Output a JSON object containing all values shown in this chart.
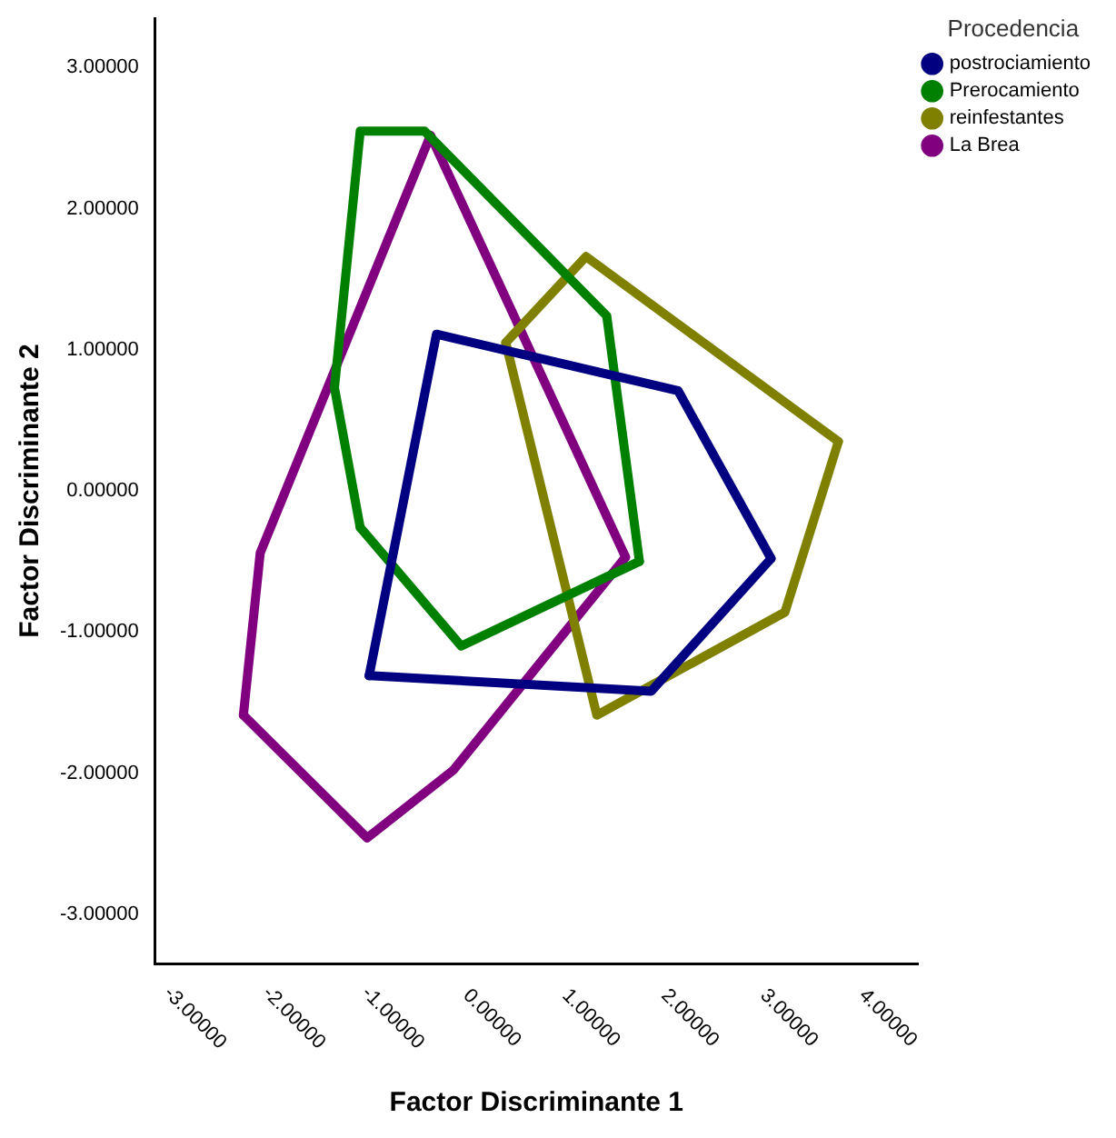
{
  "chart_data": {
    "type": "line",
    "xlabel": "Factor Discriminante 1",
    "ylabel": "Factor Discriminante 2",
    "legend_title": "Procedencia",
    "legend": "top right",
    "grid": false,
    "marker": "none",
    "line_style": "solid",
    "xlim": [
      -3.4,
      4.3
    ],
    "ylim": [
      -3.35,
      3.35
    ],
    "xticks": [
      {
        "value": -3,
        "label": "-3.00000"
      },
      {
        "value": -2,
        "label": "-2.00000"
      },
      {
        "value": -1,
        "label": "-1.00000"
      },
      {
        "value": 0,
        "label": "0.00000"
      },
      {
        "value": 1,
        "label": "1.00000"
      },
      {
        "value": 2,
        "label": "2.00000"
      },
      {
        "value": 3,
        "label": "3.00000"
      },
      {
        "value": 4,
        "label": "4.00000"
      }
    ],
    "yticks": [
      {
        "value": -3,
        "label": "-3.00000"
      },
      {
        "value": -2,
        "label": "-2.00000"
      },
      {
        "value": -1,
        "label": "-1.00000"
      },
      {
        "value": 0,
        "label": "0.00000"
      },
      {
        "value": 1,
        "label": "1.00000"
      },
      {
        "value": 2,
        "label": "2.00000"
      },
      {
        "value": 3,
        "label": "3.00000"
      }
    ],
    "series": [
      {
        "name": "postrociamiento",
        "color": "#000080",
        "x": [
          -1.24,
          -0.56,
          1.88,
          2.82
        ],
        "values": [
          -1.31,
          1.11,
          0.71,
          -0.48
        ]
      },
      {
        "color": "#000080",
        "x": [
          -1.24,
          1.61,
          2.82
        ],
        "values": [
          -1.31,
          -1.42,
          -0.48
        ]
      },
      {
        "name": "Prerocamiento",
        "color": "#008000",
        "x": [
          -1.33,
          -1.59,
          -1.33,
          -0.68,
          1.16,
          1.49
        ],
        "values": [
          -0.26,
          0.73,
          2.55,
          2.55,
          1.24,
          -0.5
        ]
      },
      {
        "color": "#008000",
        "x": [
          -1.33,
          -0.31,
          1.49
        ],
        "values": [
          -0.26,
          -1.1,
          -0.5
        ]
      },
      {
        "name": "reinfestantes",
        "color": "#808000",
        "x": [
          0.14,
          0.95,
          3.5
        ],
        "values": [
          1.05,
          1.66,
          0.35
        ]
      },
      {
        "color": "#808000",
        "x": [
          0.14,
          1.06,
          2.96,
          3.5
        ],
        "values": [
          1.05,
          -1.59,
          -0.86,
          0.35
        ]
      },
      {
        "name": "La Brea",
        "color": "#800080",
        "x": [
          -2.51,
          -2.34,
          -0.62,
          1.35
        ],
        "values": [
          -1.59,
          -0.44,
          2.52,
          -0.47
        ]
      },
      {
        "color": "#800080",
        "x": [
          -2.51,
          -1.26,
          -0.39,
          1.35
        ],
        "values": [
          -1.59,
          -2.46,
          -1.98,
          -0.47
        ]
      }
    ]
  }
}
